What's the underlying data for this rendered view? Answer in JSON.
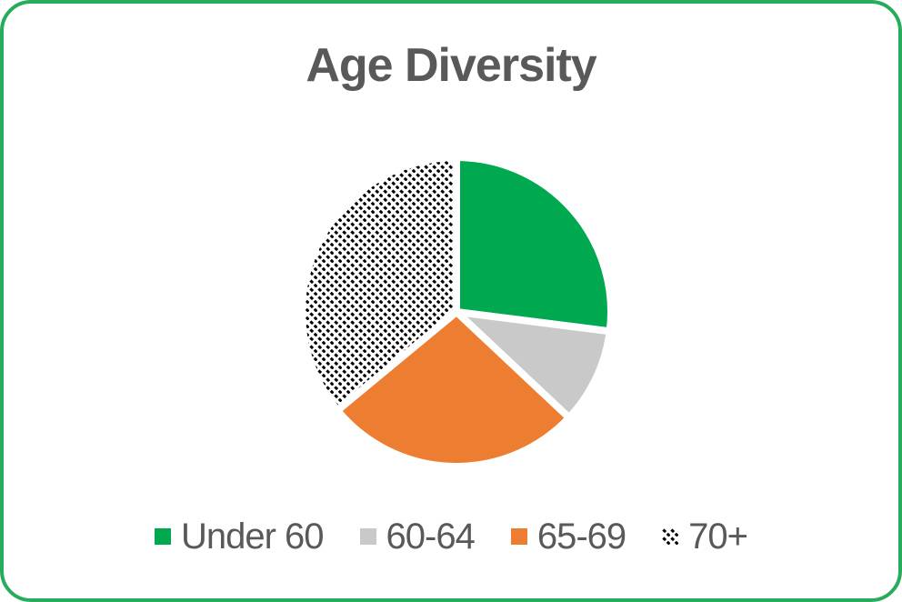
{
  "title": "Age Diversity",
  "card": {
    "border_color": "#27ab5d",
    "background_color": "#ffffff",
    "text_color": "#595959"
  },
  "chart_data": {
    "type": "pie",
    "title": "Age Diversity",
    "labels": [
      "Under 60",
      "60-64",
      "65-69",
      "70+"
    ],
    "values": [
      27,
      10,
      27,
      36
    ],
    "unit": "percent",
    "colors": [
      "#00a94f",
      "#c9c9c9",
      "#ed7d31",
      "hatch"
    ],
    "hatch_style": {
      "foreground": "#000000",
      "background": "#ffffff",
      "pattern": "dashed-diagonal-down"
    },
    "start_angle_deg": 0,
    "direction": "clockwise",
    "slice_gap_color": "#ffffff",
    "legend_position": "bottom",
    "data_labels": "none"
  }
}
